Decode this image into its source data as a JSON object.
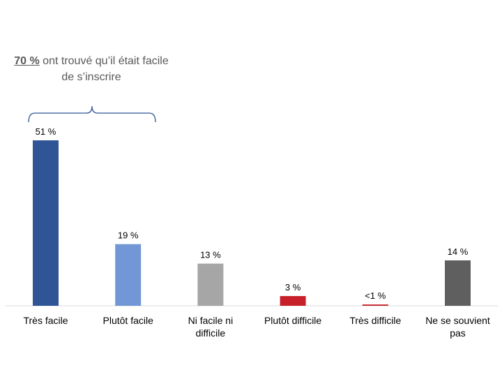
{
  "annotation": {
    "highlight": "70 %",
    "text": " ont trouvé qu’il était facile de s’inscrire"
  },
  "chart_data": {
    "type": "bar",
    "categories": [
      "Très facile",
      "Plutôt facile",
      "Ni facile ni difficile",
      "Plutôt difficile",
      "Très difficile",
      "Ne se souvient pas"
    ],
    "category_lines": [
      [
        "Très facile"
      ],
      [
        "Plutôt facile"
      ],
      [
        "Ni facile ni",
        "difficile"
      ],
      [
        "Plutôt difficile"
      ],
      [
        "Très difficile"
      ],
      [
        "Ne se souvient",
        "pas"
      ]
    ],
    "values": [
      51,
      19,
      13,
      3,
      0.4,
      14
    ],
    "data_labels": [
      "51 %",
      "19 %",
      "13 %",
      "3 %",
      "<1 %",
      "14 %"
    ],
    "colors": [
      "#2F5597",
      "#7197D6",
      "#A6A6A6",
      "#C8202A",
      "#C8202A",
      "#5F5F5F"
    ],
    "ylim": [
      0,
      51
    ],
    "grid": false
  }
}
